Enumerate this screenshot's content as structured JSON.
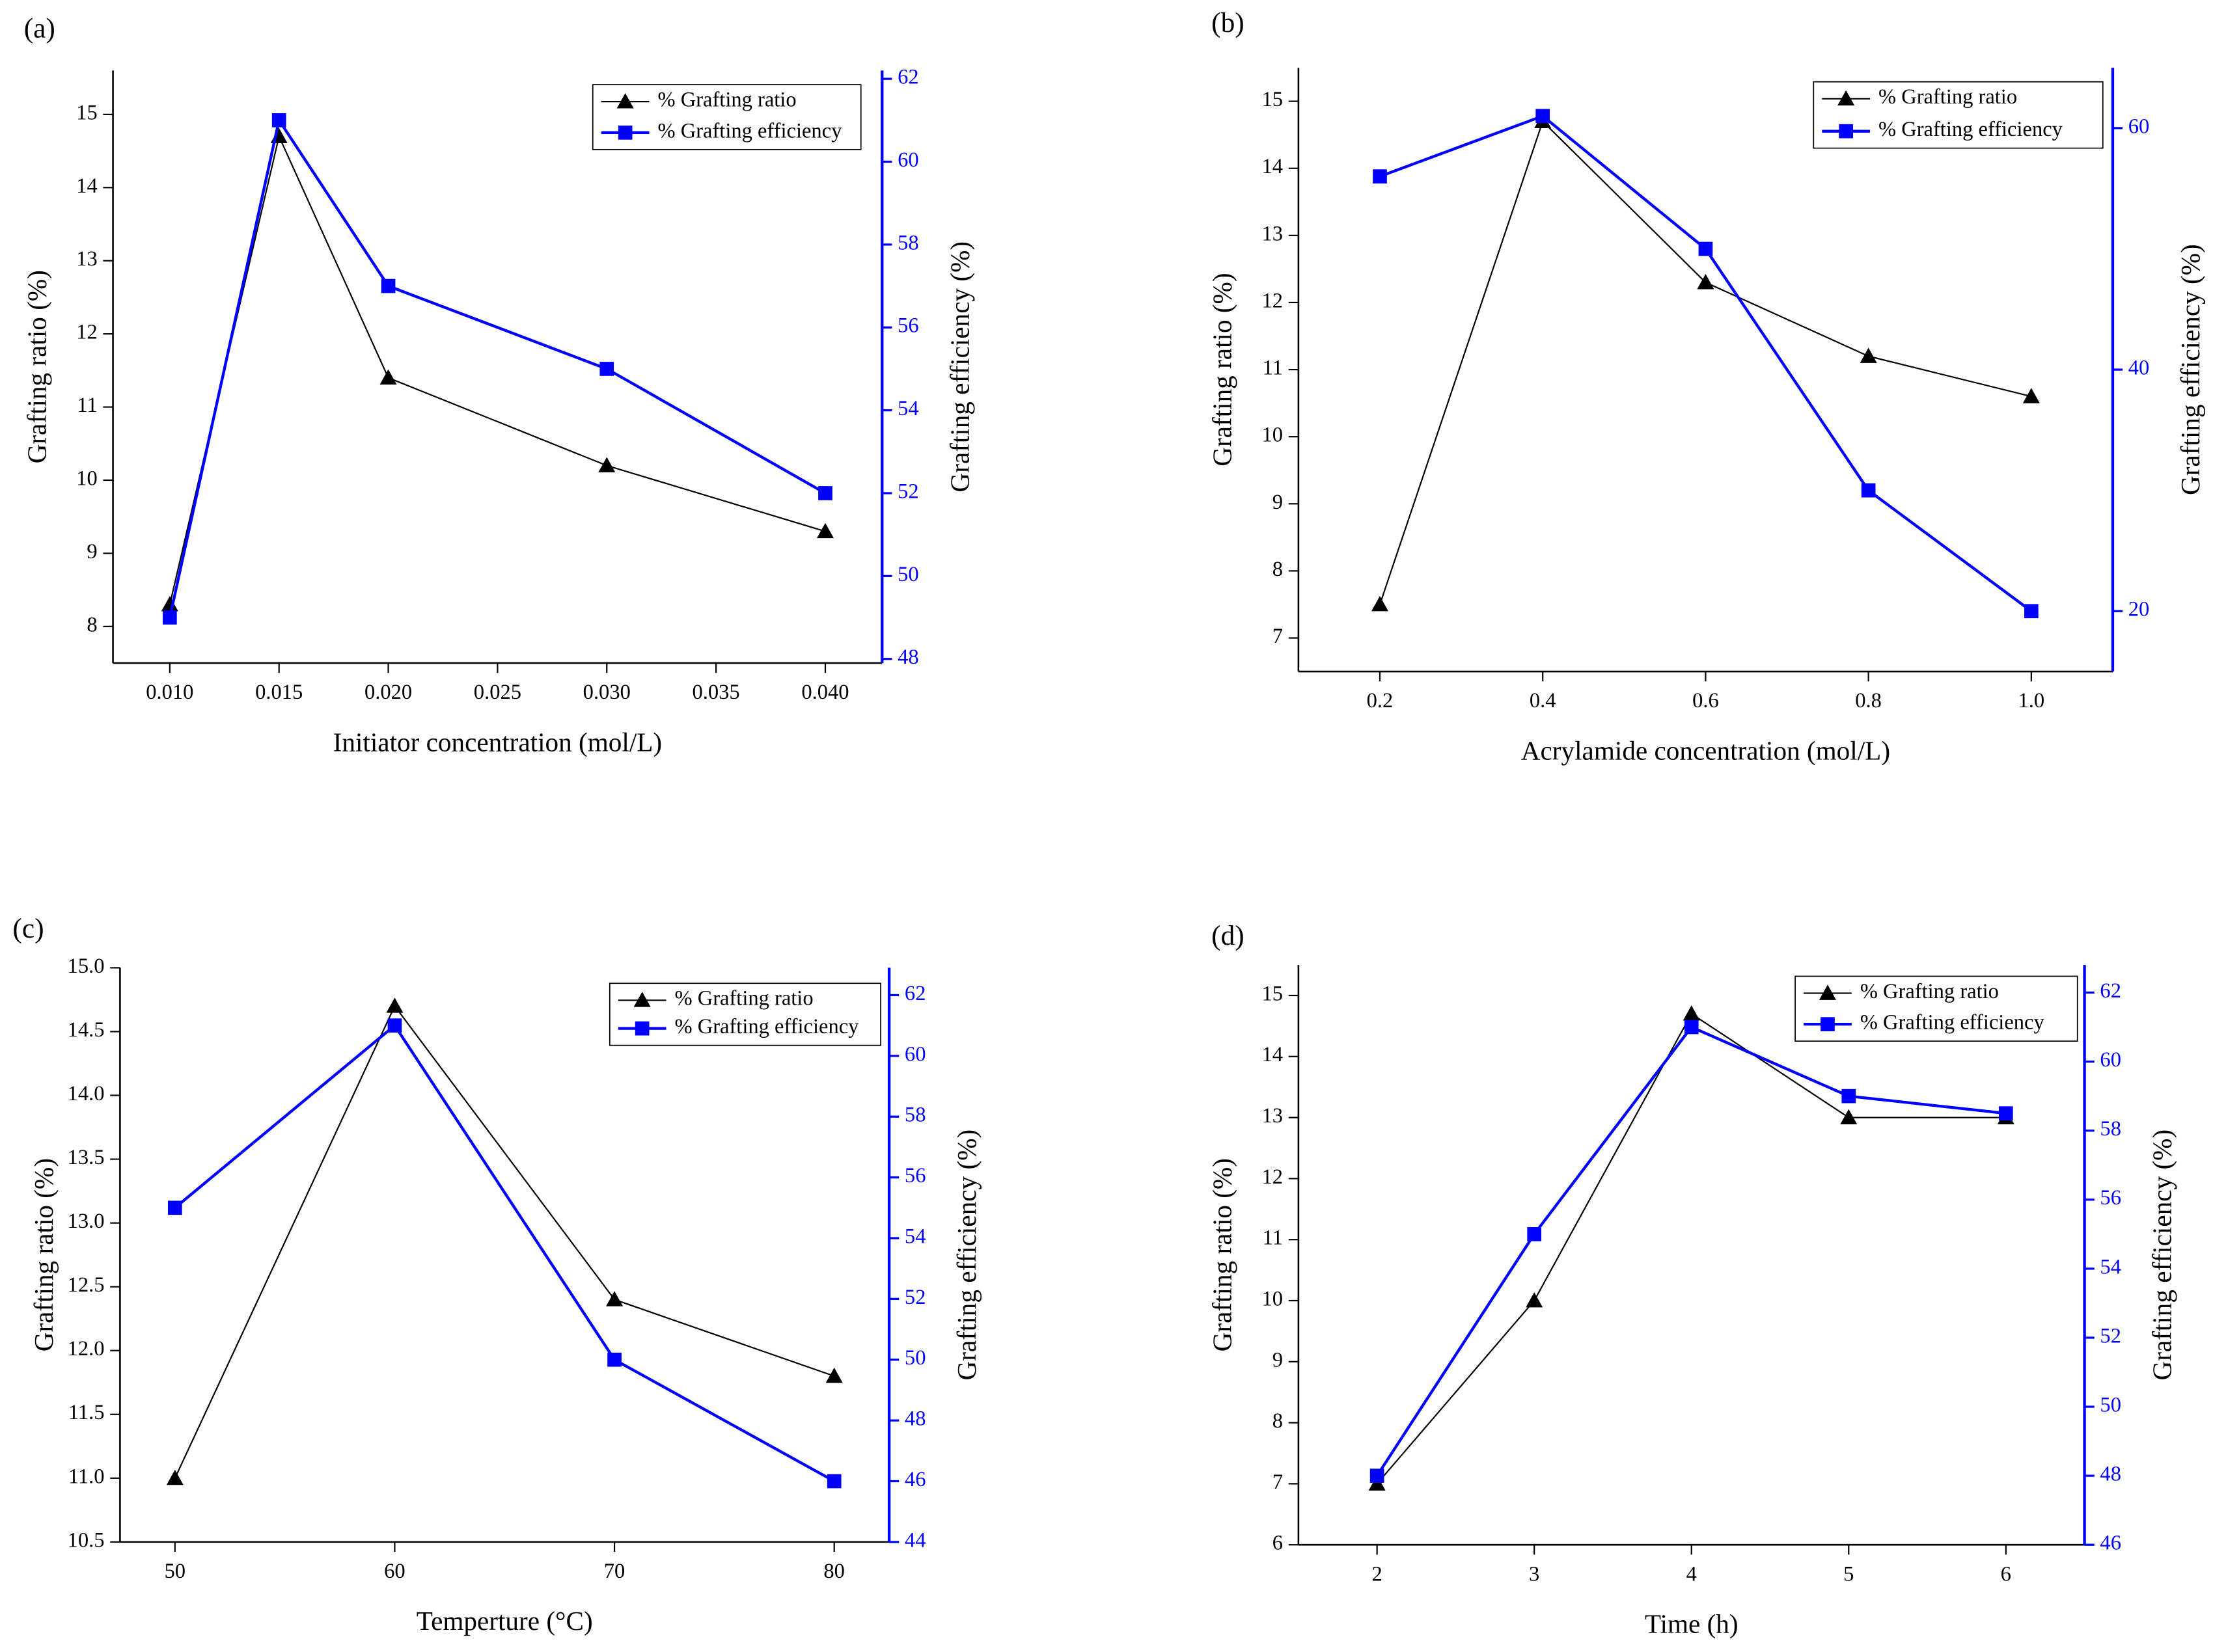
{
  "chart_data": [
    {
      "type": "line",
      "label": "(a)",
      "xlabel": "Initiator concentration (mol/L)",
      "ylabel": "Grafting ratio (%)",
      "y2label": "Grafting efficiency (%)",
      "x": [
        0.01,
        0.015,
        0.02,
        0.03,
        0.04
      ],
      "xlim": [
        0.0074,
        0.0426
      ],
      "xticks": [
        {
          "value": 0.01,
          "label": "0.010"
        },
        {
          "value": 0.015,
          "label": "0.015"
        },
        {
          "value": 0.02,
          "label": "0.020"
        },
        {
          "value": 0.025,
          "label": "0.025"
        },
        {
          "value": 0.03,
          "label": "0.030"
        },
        {
          "value": 0.035,
          "label": "0.035"
        },
        {
          "value": 0.04,
          "label": "0.040"
        }
      ],
      "ylim": [
        7.5,
        15.6
      ],
      "yticks": [
        8,
        9,
        10,
        11,
        12,
        13,
        14,
        15
      ],
      "y2lim": [
        47.9,
        62.2
      ],
      "y2ticks": [
        48,
        50,
        52,
        54,
        56,
        58,
        60,
        62
      ],
      "legend": "upper right",
      "y2color": "#0000ff",
      "series": [
        {
          "name": "% Grafting ratio",
          "color": "#000000",
          "marker": "triangle",
          "values": [
            8.3,
            14.7,
            11.4,
            10.2,
            9.3
          ]
        },
        {
          "name": "% Grafting efficiency",
          "color": "#0000ff",
          "marker": "square",
          "axis": "y2",
          "values": [
            49,
            61,
            57,
            55,
            52
          ]
        }
      ]
    },
    {
      "type": "line",
      "label": "(b)",
      "xlabel": "Acrylamide concentration (mol/L)",
      "ylabel": "Grafting ratio (%)",
      "y2label": "Grafting efficiency (%)",
      "x": [
        0.2,
        0.4,
        0.6,
        0.8,
        1.0
      ],
      "xlim": [
        0.1,
        1.1
      ],
      "xticks": [
        0.2,
        0.4,
        0.6,
        0.8,
        {
          "value": 1.0,
          "label": "1.0"
        }
      ],
      "ylim": [
        6.5,
        15.5
      ],
      "yticks": [
        7,
        8,
        9,
        10,
        11,
        12,
        13,
        14,
        15
      ],
      "y2lim": [
        15,
        65
      ],
      "y2ticks": [
        20,
        40,
        60
      ],
      "legend": "upper right",
      "y2color": "#0000ff",
      "series": [
        {
          "name": "% Grafting ratio",
          "color": "#000000",
          "marker": "triangle",
          "values": [
            7.5,
            14.7,
            12.3,
            11.2,
            10.6
          ]
        },
        {
          "name": "% Grafting efficiency",
          "color": "#0000ff",
          "marker": "square",
          "axis": "y2",
          "values": [
            56,
            61,
            50,
            30,
            20
          ]
        }
      ]
    },
    {
      "type": "line",
      "label": "(c)",
      "xlabel": "Temperture (°C)",
      "ylabel": "Grafting ratio (%)",
      "y2label": "Grafting efficiency (%)",
      "x": [
        50,
        60,
        70,
        80
      ],
      "xlim": [
        47.5,
        82.5
      ],
      "xticks": [
        50,
        60,
        70,
        80
      ],
      "ylim": [
        10.5,
        15.0
      ],
      "yticks": [
        10.5,
        {
          "value": 11.0,
          "label": "11.0"
        },
        11.5,
        {
          "value": 12.0,
          "label": "12.0"
        },
        12.5,
        {
          "value": 13.0,
          "label": "13.0"
        },
        13.5,
        {
          "value": 14.0,
          "label": "14.0"
        },
        14.5,
        {
          "value": 15.0,
          "label": "15.0"
        }
      ],
      "y2lim": [
        44,
        62.9
      ],
      "y2ticks": [
        44,
        46,
        48,
        50,
        52,
        54,
        56,
        58,
        60,
        62
      ],
      "legend": "upper right",
      "y2color": "#0000ff",
      "series": [
        {
          "name": "% Grafting ratio",
          "color": "#000000",
          "marker": "triangle",
          "values": [
            11.0,
            14.7,
            12.4,
            11.8
          ]
        },
        {
          "name": "% Grafting efficiency",
          "color": "#0000ff",
          "marker": "square",
          "axis": "y2",
          "values": [
            55,
            61,
            50,
            46
          ]
        }
      ]
    },
    {
      "type": "line",
      "label": "(d)",
      "xlabel": "Time (h)",
      "ylabel": "Grafting ratio (%)",
      "y2label": "Grafting efficiency (%)",
      "x": [
        2,
        3,
        4,
        5,
        6
      ],
      "xlim": [
        1.5,
        6.5
      ],
      "xticks": [
        2,
        3,
        4,
        5,
        6
      ],
      "ylim": [
        6,
        15.5
      ],
      "yticks": [
        6,
        7,
        8,
        9,
        10,
        11,
        12,
        13,
        14,
        15
      ],
      "y2lim": [
        46,
        62.8
      ],
      "y2ticks": [
        46,
        48,
        50,
        52,
        54,
        56,
        58,
        60,
        62
      ],
      "legend": "upper right",
      "y2color": "#0000ff",
      "series": [
        {
          "name": "% Grafting ratio",
          "color": "#000000",
          "marker": "triangle",
          "values": [
            7,
            10,
            14.7,
            13,
            13
          ]
        },
        {
          "name": "% Grafting efficiency",
          "color": "#0000ff",
          "marker": "square",
          "axis": "y2",
          "values": [
            48,
            55,
            61,
            59,
            58.5
          ]
        }
      ]
    }
  ]
}
